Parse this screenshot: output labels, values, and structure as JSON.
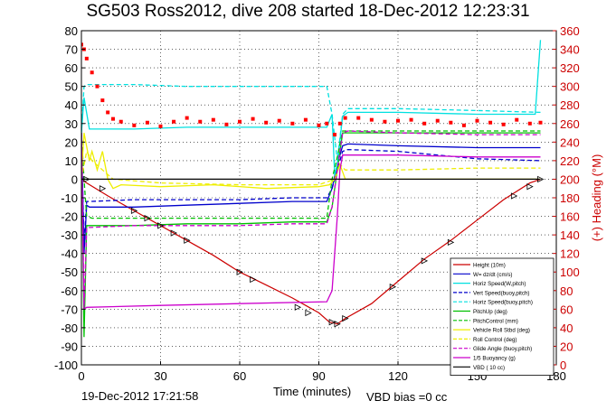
{
  "chart_data": {
    "type": "line",
    "title": "SG503 Ross2012, dive 208 started 18-Dec-2012 12:23:31",
    "xlabel": "Time (minutes)",
    "ylabel": "",
    "y2label": "(+) Heading (°M)",
    "footer_date": "19-Dec-2012 17:21:58",
    "footer_note": "VBD bias =0 cc",
    "xlim": [
      0,
      180
    ],
    "ylim": [
      -100,
      80
    ],
    "y2lim": [
      0,
      360
    ],
    "xticks": [
      0,
      30,
      60,
      90,
      120,
      150,
      180
    ],
    "yticks": [
      -100,
      -90,
      -80,
      -70,
      -60,
      -50,
      -40,
      -30,
      -20,
      -10,
      0,
      10,
      20,
      30,
      40,
      50,
      60,
      70,
      80
    ],
    "y2ticks": [
      0,
      20,
      40,
      60,
      80,
      100,
      120,
      140,
      160,
      180,
      200,
      220,
      240,
      260,
      280,
      300,
      320,
      340,
      360
    ],
    "grid": true,
    "legend_position": "bottom-right",
    "series": [
      {
        "name": "Height (10m)",
        "color": "#cc0000",
        "style": "solid",
        "x": [
          0,
          2,
          10,
          20,
          30,
          40,
          50,
          60,
          70,
          80,
          85,
          90,
          94,
          96,
          97,
          98,
          100,
          110,
          120,
          130,
          140,
          150,
          160,
          170,
          174
        ],
        "y": [
          0,
          -2,
          -9,
          -17,
          -25,
          -33,
          -41,
          -50,
          -57,
          -64,
          -68,
          -72,
          -77,
          -77.5,
          -78,
          -77,
          -75,
          -67,
          -55,
          -43,
          -33,
          -22,
          -11,
          -2,
          0
        ]
      },
      {
        "name": "W= dz/dt (cm/s)",
        "color": "#0000cc",
        "style": "solid",
        "x": [
          0,
          1,
          2,
          3,
          5,
          20,
          40,
          60,
          80,
          93,
          95,
          97,
          99,
          101,
          120,
          150,
          174
        ],
        "y": [
          25,
          -40,
          -14,
          -15,
          -15,
          -15,
          -14,
          -13,
          -12,
          -12,
          -5,
          8,
          18,
          19,
          18,
          17,
          17
        ]
      },
      {
        "name": "Horiz Speed(W,pitch)",
        "color": "#00e0e0",
        "style": "solid",
        "x": [
          0,
          1,
          3,
          20,
          40,
          60,
          80,
          93,
          95,
          96,
          97,
          99,
          101,
          120,
          150,
          172,
          174
        ],
        "y": [
          25,
          44,
          27,
          27,
          28,
          28,
          28,
          28,
          35,
          2,
          8,
          34,
          36,
          36,
          35,
          35,
          75
        ]
      },
      {
        "name": "Vert Speed(buoy,pitch)",
        "color": "#0000cc",
        "style": "dashed",
        "x": [
          0,
          1,
          2,
          3,
          20,
          40,
          60,
          80,
          93,
          95,
          97,
          99,
          101,
          120,
          150,
          174
        ],
        "y": [
          25,
          -35,
          -12,
          -12,
          -11,
          -11,
          -11,
          -10,
          -10,
          -5,
          5,
          15,
          16,
          15,
          11,
          10
        ]
      },
      {
        "name": "Horiz Speed(buoy,pitch)",
        "color": "#00e0e0",
        "style": "dashed",
        "x": [
          0,
          1,
          2,
          20,
          40,
          60,
          80,
          93,
          95,
          97,
          99,
          101,
          120,
          150,
          174
        ],
        "y": [
          25,
          50,
          51,
          51,
          50,
          50,
          50,
          50,
          35,
          10,
          35,
          38,
          38,
          37,
          36
        ]
      },
      {
        "name": "PitchUp (deg)",
        "color": "#00c000",
        "style": "solid",
        "x": [
          0,
          1,
          2,
          3,
          20,
          40,
          60,
          80,
          93,
          95,
          97,
          99,
          101,
          120,
          150,
          174
        ],
        "y": [
          25,
          -85,
          -25,
          -25,
          -25,
          -24,
          -24,
          -23,
          -23,
          -15,
          5,
          25,
          25,
          25,
          25,
          25
        ]
      },
      {
        "name": "PitchControl (mm)",
        "color": "#00c000",
        "style": "dashed",
        "x": [
          0,
          1,
          2,
          4,
          93,
          95,
          97,
          99,
          101,
          174
        ],
        "y": [
          25,
          0,
          -20,
          -21,
          -21,
          0,
          12,
          26,
          26,
          26
        ]
      },
      {
        "name": "Vehicle Roll Stbd (deg)",
        "color": "#eeee00",
        "style": "solid",
        "x": [
          0,
          1,
          3,
          4,
          6,
          8,
          10,
          12,
          15,
          30,
          50,
          70,
          90,
          94,
          96,
          98,
          100,
          120,
          150,
          174
        ],
        "y": [
          0,
          25,
          10,
          15,
          5,
          15,
          0,
          -5,
          -3,
          -4,
          -3,
          -5,
          -4,
          -3,
          0,
          8,
          0,
          0,
          0,
          0
        ]
      },
      {
        "name": "Roll Control (deg)",
        "color": "#eeee00",
        "style": "dashed",
        "x": [
          0,
          2,
          4,
          8,
          12,
          30,
          60,
          90,
          96,
          98,
          100,
          120,
          150,
          174
        ],
        "y": [
          0,
          15,
          10,
          5,
          0,
          -2,
          -3,
          -3,
          0,
          8,
          5,
          5,
          6,
          6
        ]
      },
      {
        "name": "Glide Angle (buoy,pitch)",
        "color": "#cc00cc",
        "style": "dashed",
        "x": [
          0,
          1,
          2,
          3,
          20,
          40,
          60,
          80,
          93,
          95,
          97,
          99,
          101,
          120,
          150,
          174
        ],
        "y": [
          25,
          -70,
          -26,
          -26,
          -25,
          -25,
          -25,
          -24,
          -24,
          -15,
          5,
          25,
          26,
          25,
          24,
          24
        ]
      },
      {
        "name": "1/5 Buoyancy (g)",
        "color": "#cc00cc",
        "style": "solid",
        "x": [
          0,
          1,
          2,
          30,
          60,
          93,
          95,
          97,
          98,
          99,
          101,
          120,
          150,
          174
        ],
        "y": [
          25,
          -70,
          -69,
          -68,
          -67,
          -66,
          -60,
          -20,
          5,
          13,
          13,
          13,
          12,
          12
        ]
      },
      {
        "name": "VBD ( 10 cc)",
        "color": "#000000",
        "style": "solid",
        "x": [
          0,
          174
        ],
        "y": [
          0,
          0
        ]
      },
      {
        "name": "Heading",
        "axis": "right",
        "color": "#ff0000",
        "style": "markers",
        "x": [
          0,
          1,
          2,
          4,
          6,
          8,
          10,
          12,
          15,
          20,
          25,
          30,
          35,
          40,
          45,
          50,
          55,
          60,
          65,
          70,
          75,
          80,
          85,
          90,
          93,
          96,
          98,
          100,
          105,
          110,
          115,
          120,
          125,
          130,
          135,
          140,
          145,
          150,
          155,
          160,
          165,
          170,
          174
        ],
        "y": [
          345,
          340,
          330,
          315,
          300,
          285,
          272,
          265,
          262,
          258,
          261,
          257,
          262,
          266,
          262,
          264,
          259,
          262,
          265,
          261,
          263,
          260,
          264,
          258,
          260,
          248,
          260,
          266,
          266,
          264,
          262,
          263,
          264,
          260,
          263,
          261,
          258,
          263,
          261,
          259,
          264,
          260,
          261
        ]
      }
    ],
    "markers": {
      "name": "symbols along Height",
      "symbol": "triangles",
      "x": [
        2,
        8,
        20,
        25,
        30,
        35,
        40,
        60,
        65,
        82,
        86,
        95,
        97,
        100,
        118,
        130,
        140,
        164,
        170,
        174
      ],
      "y": [
        0,
        -5,
        -17,
        -21,
        -25,
        -29,
        -33,
        -50,
        -54,
        -69,
        -72,
        -77,
        -78,
        -75,
        -58,
        -44,
        -34,
        -9,
        -4,
        0
      ]
    }
  }
}
